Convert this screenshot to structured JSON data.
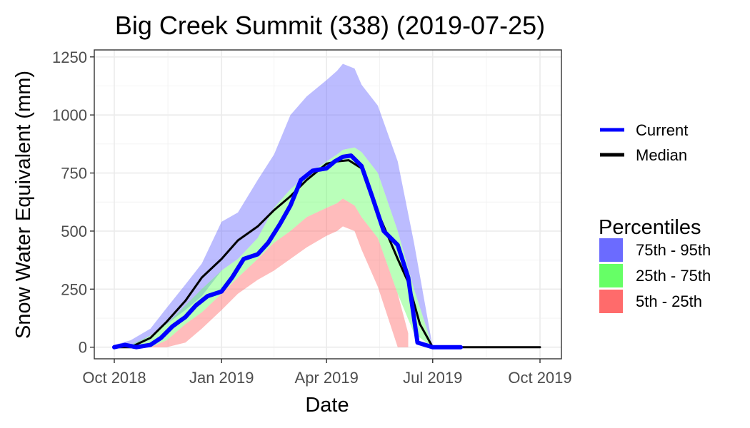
{
  "chart_data": {
    "type": "area",
    "title": "Big Creek Summit (338) (2019-07-25)",
    "xlabel": "Date",
    "ylabel": "Snow Water Equivalent (mm)",
    "x_ticks": [
      "Oct 2018",
      "Jan 2019",
      "Apr 2019",
      "Jul 2019",
      "Oct 2019"
    ],
    "y_ticks": [
      "0",
      "250",
      "500",
      "750",
      "1000",
      "1250"
    ],
    "xlim": [
      "2018-10-01",
      "2019-10-01"
    ],
    "ylim": [
      -50,
      1280
    ],
    "grid": true,
    "legend_placement": "right",
    "line_legend": [
      {
        "key": "current",
        "label": "Current",
        "color": "#0000ff"
      },
      {
        "key": "median",
        "label": "Median",
        "color": "#000000"
      }
    ],
    "band_legend_title": "Percentiles",
    "band_legend": [
      {
        "key": "p75_95",
        "label": "75th - 95th",
        "color": "#6b6bff"
      },
      {
        "key": "p25_75",
        "label": "25th - 75th",
        "color": "#66ff66"
      },
      {
        "key": "p5_25",
        "label": "5th - 25th",
        "color": "#ff6b6b"
      }
    ],
    "bands": {
      "p75_95": {
        "x": [
          "2018-10-01",
          "2018-10-15",
          "2018-11-01",
          "2018-11-15",
          "2018-12-01",
          "2018-12-15",
          "2019-01-01",
          "2019-01-15",
          "2019-02-01",
          "2019-02-15",
          "2019-03-01",
          "2019-03-15",
          "2019-04-01",
          "2019-04-10",
          "2019-04-15",
          "2019-04-25",
          "2019-05-01",
          "2019-05-15",
          "2019-06-01",
          "2019-06-15",
          "2019-07-01",
          "2019-07-10"
        ],
        "lower": [
          0,
          0,
          50,
          100,
          160,
          220,
          330,
          380,
          470,
          600,
          680,
          740,
          800,
          830,
          850,
          860,
          840,
          750,
          500,
          250,
          0,
          0
        ],
        "upper": [
          10,
          30,
          80,
          170,
          270,
          360,
          540,
          580,
          720,
          830,
          1000,
          1080,
          1150,
          1190,
          1220,
          1200,
          1130,
          1040,
          800,
          450,
          0,
          0
        ]
      },
      "p25_75": {
        "x": [
          "2018-10-01",
          "2018-10-15",
          "2018-11-01",
          "2018-11-15",
          "2018-12-01",
          "2018-12-15",
          "2019-01-01",
          "2019-01-15",
          "2019-02-01",
          "2019-02-15",
          "2019-03-01",
          "2019-03-15",
          "2019-04-01",
          "2019-04-10",
          "2019-04-15",
          "2019-04-25",
          "2019-05-01",
          "2019-05-15",
          "2019-06-01",
          "2019-06-15",
          "2019-07-01",
          "2019-07-10"
        ],
        "lower": [
          0,
          0,
          0,
          30,
          100,
          150,
          230,
          300,
          380,
          450,
          500,
          560,
          600,
          620,
          640,
          610,
          560,
          470,
          230,
          60,
          0,
          0
        ],
        "upper": [
          0,
          10,
          50,
          100,
          180,
          250,
          330,
          380,
          470,
          600,
          680,
          740,
          800,
          830,
          850,
          860,
          840,
          750,
          500,
          250,
          0,
          0
        ]
      },
      "p5_25": {
        "x": [
          "2018-10-01",
          "2018-11-01",
          "2018-11-15",
          "2018-12-01",
          "2018-12-15",
          "2019-01-01",
          "2019-01-15",
          "2019-02-01",
          "2019-02-15",
          "2019-03-01",
          "2019-03-15",
          "2019-04-01",
          "2019-04-10",
          "2019-04-15",
          "2019-04-25",
          "2019-05-01",
          "2019-05-15",
          "2019-06-01",
          "2019-06-10"
        ],
        "lower": [
          0,
          0,
          0,
          20,
          80,
          160,
          230,
          290,
          330,
          380,
          430,
          480,
          500,
          520,
          500,
          420,
          260,
          0,
          0
        ],
        "upper": [
          0,
          0,
          30,
          100,
          150,
          230,
          300,
          380,
          450,
          500,
          560,
          600,
          620,
          640,
          610,
          560,
          470,
          230,
          60
        ]
      }
    },
    "series": [
      {
        "name": "Current",
        "key": "current",
        "x": [
          "2018-10-01",
          "2018-10-10",
          "2018-10-20",
          "2018-11-01",
          "2018-11-10",
          "2018-11-20",
          "2018-12-01",
          "2018-12-10",
          "2018-12-20",
          "2019-01-01",
          "2019-01-10",
          "2019-01-20",
          "2019-02-01",
          "2019-02-10",
          "2019-02-20",
          "2019-03-01",
          "2019-03-10",
          "2019-03-20",
          "2019-04-01",
          "2019-04-08",
          "2019-04-15",
          "2019-04-22",
          "2019-05-01",
          "2019-05-10",
          "2019-05-20",
          "2019-06-01",
          "2019-06-10",
          "2019-06-18",
          "2019-07-01",
          "2019-07-10",
          "2019-07-25"
        ],
        "y": [
          0,
          10,
          0,
          10,
          40,
          90,
          130,
          180,
          220,
          240,
          300,
          380,
          400,
          450,
          530,
          610,
          720,
          760,
          770,
          800,
          820,
          825,
          780,
          650,
          500,
          440,
          300,
          20,
          0,
          0,
          0
        ]
      },
      {
        "name": "Median",
        "key": "median",
        "x": [
          "2018-10-01",
          "2018-10-15",
          "2018-11-01",
          "2018-11-15",
          "2018-12-01",
          "2018-12-15",
          "2019-01-01",
          "2019-01-15",
          "2019-02-01",
          "2019-02-15",
          "2019-03-01",
          "2019-03-15",
          "2019-04-01",
          "2019-04-10",
          "2019-04-20",
          "2019-05-01",
          "2019-05-15",
          "2019-06-01",
          "2019-06-10",
          "2019-06-20",
          "2019-07-01",
          "2019-10-01"
        ],
        "y": [
          0,
          0,
          40,
          110,
          200,
          300,
          380,
          460,
          520,
          590,
          650,
          720,
          790,
          800,
          805,
          770,
          580,
          380,
          280,
          100,
          0,
          0
        ]
      }
    ]
  }
}
